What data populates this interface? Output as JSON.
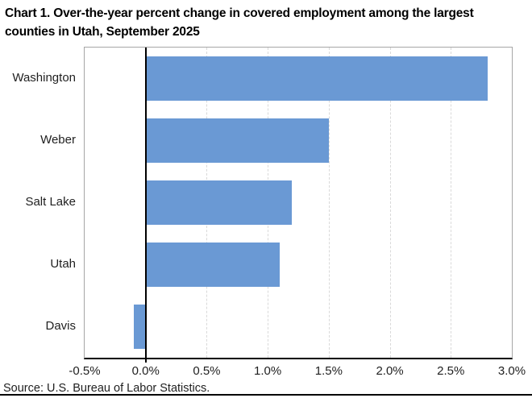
{
  "title": "Chart 1. Over-the-year percent change in covered employment among the largest counties in Utah, September 2025",
  "source": "Source: U.S. Bureau of Labor Statistics.",
  "chart_data": {
    "type": "bar",
    "orientation": "horizontal",
    "title": "Chart 1. Over-the-year percent change in covered employment among the largest counties in Utah, September 2025",
    "categories": [
      "Washington",
      "Weber",
      "Salt Lake",
      "Utah",
      "Davis"
    ],
    "values": [
      2.8,
      1.5,
      1.2,
      1.1,
      -0.1
    ],
    "unit": "%",
    "xlabel": "",
    "ylabel": "",
    "xlim": [
      -0.5,
      3.0
    ],
    "ticks": [
      {
        "v": -0.5,
        "label": "-0.5%"
      },
      {
        "v": 0.0,
        "label": "0.0%"
      },
      {
        "v": 0.5,
        "label": "0.5%"
      },
      {
        "v": 1.0,
        "label": "1.0%"
      },
      {
        "v": 1.5,
        "label": "1.5%"
      },
      {
        "v": 2.0,
        "label": "2.0%"
      },
      {
        "v": 2.5,
        "label": "2.5%"
      },
      {
        "v": 3.0,
        "label": "3.0%"
      }
    ],
    "grid": "vertical-dashed",
    "legend": "none",
    "colors": {
      "bar": "#6a99d4",
      "gridline": "#d9d9d9",
      "plot_border": "#a6a6a6",
      "axis_line": "#000000",
      "text": "#1f1f1f"
    }
  }
}
